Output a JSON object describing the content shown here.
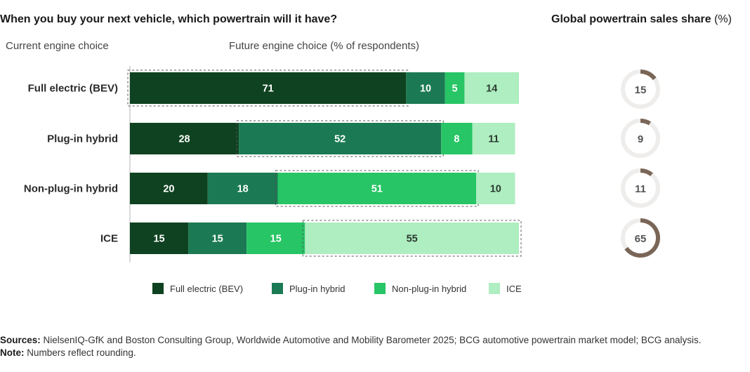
{
  "title": "When you buy your next vehicle, which powertrain will it have?",
  "right_title": "Global powertrain sales share",
  "right_title_unit": "(%)",
  "left_header": "Current engine choice",
  "bar_header": "Future engine choice (% of respondents)",
  "colors": {
    "bev": "#0f4220",
    "phev": "#1b7a53",
    "nphev": "#27c565",
    "ice": "#aeeec0",
    "donut_fill": "#7a6657",
    "donut_track": "#eeedeb"
  },
  "chart_data": [
    {
      "type": "bar",
      "orientation": "horizontal",
      "stacked": true,
      "categories": [
        "Full electric (BEV)",
        "Plug-in hybrid",
        "Non-plug-in hybrid",
        "ICE"
      ],
      "series": [
        {
          "name": "Full electric (BEV)",
          "color": "#0f4220",
          "values": [
            71,
            28,
            20,
            15
          ]
        },
        {
          "name": "Plug-in hybrid",
          "color": "#1b7a53",
          "values": [
            10,
            52,
            18,
            15
          ]
        },
        {
          "name": "Non-plug-in hybrid",
          "color": "#27c565",
          "values": [
            5,
            8,
            51,
            15
          ]
        },
        {
          "name": "ICE",
          "color": "#aeeec0",
          "values": [
            14,
            11,
            10,
            55
          ]
        }
      ],
      "highlight_series_per_row": [
        "Full electric (BEV)",
        "Plug-in hybrid",
        "Non-plug-in hybrid",
        "ICE"
      ],
      "legend": "bottom",
      "xlim": [
        0,
        100
      ]
    },
    {
      "type": "pie",
      "donut": true,
      "title": "Global powertrain sales share (%)",
      "categories": [
        "Full electric (BEV)",
        "Plug-in hybrid",
        "Non-plug-in hybrid",
        "ICE"
      ],
      "values": [
        15,
        9,
        11,
        65
      ]
    }
  ],
  "sources_label": "Sources:",
  "sources_text": " NielsenIQ-GfK and Boston Consulting Group, Worldwide Automotive and Mobility Barometer 2025; BCG automotive powertrain market model; BCG analysis.",
  "note_label": "Note:",
  "note_text": " Numbers reflect rounding."
}
